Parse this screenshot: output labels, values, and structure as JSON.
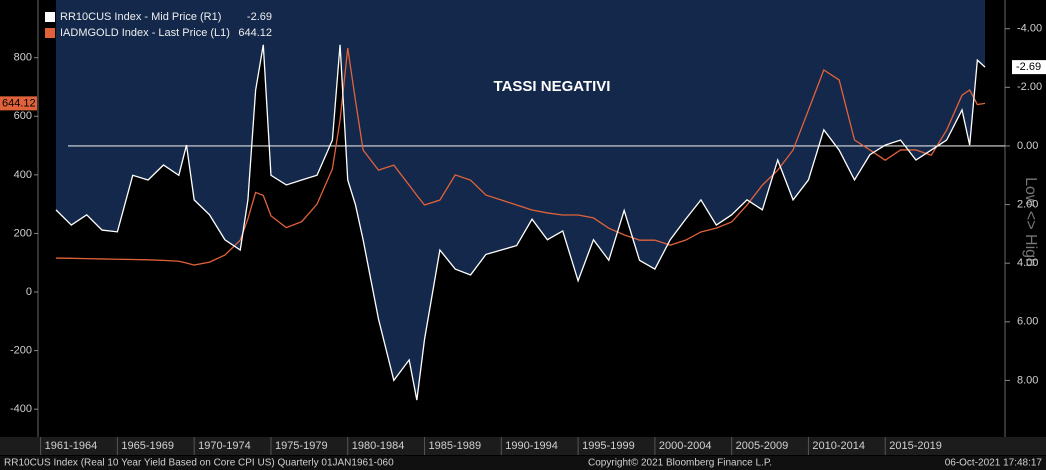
{
  "chart_data": {
    "type": "line",
    "annotation": "TASSI NEGATIVI",
    "y2_axis_label": "Low <> High",
    "footer_left": "RR10CUS Index (Real 10 Year Yield Based on Core CPI US)  Quarterly 01JAN1961-060",
    "footer_center": "Copyright© 2021 Bloomberg Finance L.P.",
    "footer_right": "06-Oct-2021 17:48:17",
    "x": [
      1961,
      1962,
      1963,
      1964,
      1965,
      1966,
      1967,
      1968,
      1969,
      1969.5,
      1970,
      1971,
      1972,
      1973,
      1973.5,
      1974,
      1974.5,
      1975,
      1976,
      1977,
      1978,
      1979,
      1979.5,
      1980,
      1980.5,
      1981,
      1982,
      1983,
      1984,
      1984.5,
      1985,
      1986,
      1987,
      1988,
      1989,
      1990,
      1991,
      1992,
      1993,
      1994,
      1995,
      1996,
      1997,
      1998,
      1999,
      2000,
      2001,
      2002,
      2003,
      2004,
      2005,
      2006,
      2007,
      2008,
      2009,
      2010,
      2011,
      2012,
      2013,
      2014,
      2015,
      2016,
      2017,
      2018,
      2019,
      2020,
      2020.5,
      2021,
      2021.5
    ],
    "xlim": [
      1959.83,
      2022.8
    ],
    "xticks": [
      {
        "value": 1960,
        "label": "1961-1964"
      },
      {
        "value": 1965,
        "label": "1965-1969"
      },
      {
        "value": 1970,
        "label": "1970-1974"
      },
      {
        "value": 1975,
        "label": "1975-1979"
      },
      {
        "value": 1980,
        "label": "1980-1984"
      },
      {
        "value": 1985,
        "label": "1985-1989"
      },
      {
        "value": 1990,
        "label": "1990-1994"
      },
      {
        "value": 1995,
        "label": "1995-1999"
      },
      {
        "value": 2000,
        "label": "2000-2004"
      },
      {
        "value": 2005,
        "label": "2005-2009"
      },
      {
        "value": 2010,
        "label": "2010-2014"
      },
      {
        "value": 2015,
        "label": "2015-2019"
      }
    ],
    "ylim": [
      -495,
      997
    ],
    "yticks": [
      800,
      600,
      400,
      200,
      0,
      -200,
      -400
    ],
    "y2lim": [
      -4.98,
      9.93
    ],
    "y2_inverted": true,
    "y2ticks": [
      {
        "value": -4,
        "label": "-4.00"
      },
      {
        "value": -2,
        "label": "-2.00"
      },
      {
        "value": 0,
        "label": "0.00"
      },
      {
        "value": 2,
        "label": "2.00"
      },
      {
        "value": 4,
        "label": "4.00"
      },
      {
        "value": 6,
        "label": "6.00"
      },
      {
        "value": 8,
        "label": "8.00"
      }
    ],
    "hline_y2": 0,
    "series": [
      {
        "name": "RR10CUS Index - Mid Price (R1)",
        "color": "#ffffff",
        "axis": "y2",
        "fill_above": "#13284a",
        "values": [
          2.18,
          2.7,
          2.35,
          2.87,
          2.93,
          1.0,
          1.16,
          0.65,
          1.0,
          -0.03,
          1.84,
          2.35,
          3.2,
          3.55,
          1.84,
          -1.9,
          -3.45,
          1.0,
          1.33,
          1.16,
          1.0,
          -0.2,
          -3.45,
          1.16,
          2.0,
          3.2,
          5.9,
          8.0,
          7.3,
          8.67,
          6.6,
          3.55,
          4.2,
          4.4,
          3.7,
          3.55,
          3.4,
          2.5,
          3.2,
          2.9,
          4.6,
          3.2,
          3.9,
          2.2,
          3.9,
          4.2,
          3.2,
          2.5,
          1.84,
          2.7,
          2.35,
          1.84,
          2.18,
          0.48,
          1.84,
          1.16,
          -0.55,
          0.14,
          1.16,
          0.3,
          -0.03,
          -0.2,
          0.48,
          0.14,
          -0.2,
          -1.23,
          -0.03,
          -2.93,
          -2.69
        ]
      },
      {
        "name": "IADMGOLD Index - Last Price (L1)",
        "color": "#e0623a",
        "axis": "y",
        "values": [
          116,
          115,
          114,
          113,
          112,
          111,
          110,
          108,
          105,
          99,
          92,
          102,
          126,
          177,
          250,
          340,
          330,
          260,
          220,
          240,
          300,
          420,
          587,
          833,
          655,
          485,
          416,
          433,
          365,
          330,
          297,
          314,
          400,
          382,
          331,
          314,
          297,
          280,
          270,
          263,
          263,
          253,
          218,
          195,
          177,
          177,
          160,
          177,
          205,
          218,
          239,
          297,
          365,
          416,
          485,
          621,
          758,
          724,
          519,
          485,
          450,
          485,
          485,
          467,
          553,
          672,
          690,
          640,
          644.12
        ]
      }
    ]
  }
}
